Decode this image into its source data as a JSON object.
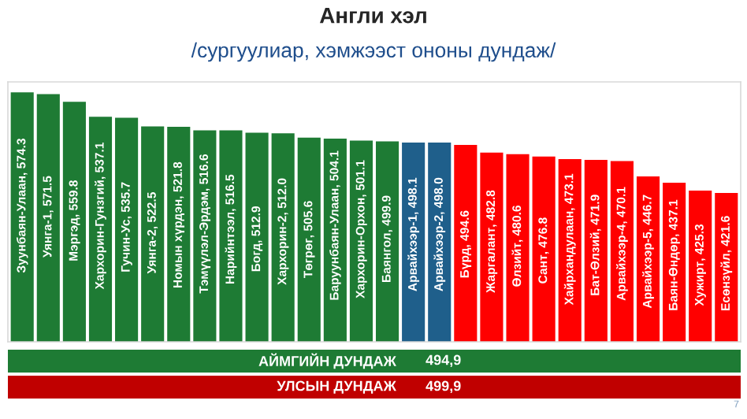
{
  "chart_data": [
    {
      "type": "bar",
      "title": "Англи хэл",
      "subtitle": "/сургуулиар, хэмжээст ононы дундаж/",
      "categories": [
        "Зуунбаян-Улаан",
        "Уянга-1",
        "Мэргэд",
        "Хархорин-Гунзгий",
        "Гучин-Ус",
        "Уянга-2",
        "Номын хүрдэн",
        "Тэмүүлэл-Эрдэм",
        "Нарийнтээл",
        "Богд",
        "Хархорин-2",
        "Төгрөг",
        "Баруунбаян-Улаан",
        "Хархорин-Орхон",
        "Баянгол",
        "Арвайхээр-1",
        "Арвайхээр-2",
        "Бүрд",
        "Жаргалант",
        "Өлзийт",
        "Сант",
        "Хайрхандулаан",
        "Бат-Өлзий",
        "Арвайхээр-4",
        "Арвайхээр-5",
        "Баян-Өндөр",
        "Хужирт",
        "Есөнзүйл"
      ],
      "values": [
        574.3,
        571.5,
        559.8,
        537.1,
        535.7,
        522.5,
        521.8,
        516.6,
        516.5,
        512.9,
        512.0,
        505.6,
        504.1,
        501.1,
        499.9,
        498.1,
        498.0,
        494.6,
        482.8,
        480.6,
        476.8,
        473.1,
        471.9,
        470.1,
        446.7,
        437.1,
        425.3,
        421.6
      ],
      "value_labels": [
        ", 574.3",
        ", 571.5",
        ", 559.8",
        ", 537.1",
        ", 535.7",
        ", 522.5",
        ", 521.8",
        ", 516.6",
        ", 516.5",
        ", 512.9",
        ", 512.0",
        ", 505.6",
        ", 504.1",
        ", 501.1",
        ", 499.9",
        ", 498.1",
        ", 498.0",
        ", 494.6",
        ", 482.8",
        ", 480.6",
        ", 476.8",
        ", 473.1",
        ", 471.9",
        ", 470.1",
        ", 446.7",
        ", 437.1",
        ", 425.3",
        ", 421.6"
      ],
      "colors": [
        "#1e7b34",
        "#1e7b34",
        "#1e7b34",
        "#1e7b34",
        "#1e7b34",
        "#1e7b34",
        "#1e7b34",
        "#1e7b34",
        "#1e7b34",
        "#1e7b34",
        "#1e7b34",
        "#1e7b34",
        "#1e7b34",
        "#1e7b34",
        "#1e7b34",
        "#1f5f8b",
        "#1f5f8b",
        "#ff0000",
        "#ff0000",
        "#ff0000",
        "#ff0000",
        "#ff0000",
        "#ff0000",
        "#ff0000",
        "#ff0000",
        "#ff0000",
        "#ff0000",
        "#ff0000"
      ],
      "ylim": [
        196,
        590
      ],
      "tick_labels": false,
      "annotations": [
        "7"
      ]
    },
    {
      "type": "other",
      "categories": [
        "АЙМГИЙН ДУНДАЖ",
        "УЛСЫН ДУНДАЖ"
      ],
      "values": [
        494.9,
        499.9
      ],
      "value_labels": [
        "494,9",
        "499,9"
      ],
      "colors": [
        "#1e7b34",
        "#c00000"
      ]
    }
  ]
}
